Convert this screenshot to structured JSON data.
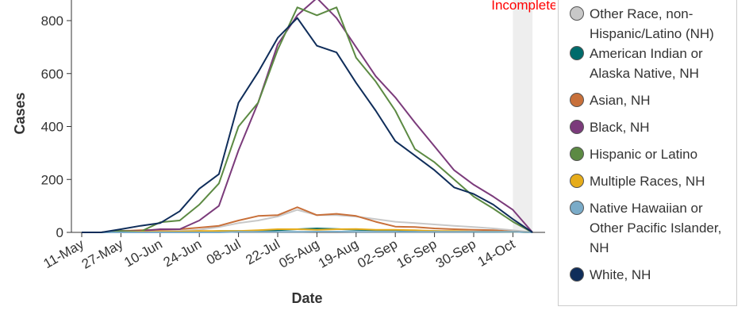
{
  "chart_data": {
    "type": "line",
    "xlabel": "Date",
    "ylabel": "Cases",
    "x_tick_labels": [
      "11-May",
      "27-May",
      "10-Jun",
      "24-Jun",
      "08-Jul",
      "22-Jul",
      "05-Aug",
      "19-Aug",
      "02-Sep",
      "16-Sep",
      "30-Sep",
      "14-Oct"
    ],
    "x_ticks_week_index": [
      0,
      2,
      4,
      6,
      8,
      10,
      12,
      14,
      16,
      18,
      20,
      22
    ],
    "y_ticks": [
      0,
      200,
      400,
      600,
      800
    ],
    "ylim": [
      0,
      900
    ],
    "x_range_weeks": [
      0,
      23.5
    ],
    "grid": false,
    "legend_position": "right",
    "annotation": {
      "label": "Incomplete",
      "from_week": 22,
      "to_week": 23,
      "color": "#ff0000"
    },
    "x_weeks": [
      0,
      1,
      2,
      3,
      4,
      5,
      6,
      7,
      8,
      9,
      10,
      11,
      12,
      13,
      14,
      15,
      16,
      17,
      18,
      19,
      20,
      21,
      22,
      23
    ],
    "series": [
      {
        "name": "Other Race, non-Hispanic/Latino (NH)",
        "color": "#c8c8c8",
        "values": [
          0,
          0,
          2,
          3,
          5,
          6,
          10,
          20,
          35,
          45,
          60,
          85,
          65,
          65,
          60,
          50,
          40,
          35,
          30,
          25,
          20,
          15,
          8,
          0
        ]
      },
      {
        "name": "American Indian or Alaska Native, NH",
        "color": "#006b6b",
        "values": [
          0,
          0,
          0,
          0,
          0,
          2,
          3,
          5,
          5,
          3,
          8,
          12,
          15,
          13,
          10,
          8,
          8,
          5,
          5,
          3,
          2,
          2,
          2,
          0
        ]
      },
      {
        "name": "Asian, NH",
        "color": "#c8703a",
        "values": [
          0,
          0,
          5,
          8,
          10,
          12,
          18,
          25,
          45,
          62,
          65,
          95,
          65,
          70,
          62,
          40,
          22,
          20,
          15,
          12,
          10,
          8,
          3,
          0
        ]
      },
      {
        "name": "Black, NH",
        "color": "#7b3b7b",
        "values": [
          0,
          0,
          5,
          5,
          12,
          12,
          45,
          100,
          310,
          490,
          710,
          820,
          885,
          810,
          700,
          590,
          510,
          415,
          325,
          235,
          180,
          135,
          85,
          0
        ]
      },
      {
        "name": "Hispanic or Latino",
        "color": "#5c8a43",
        "values": [
          0,
          0,
          5,
          3,
          38,
          45,
          105,
          185,
          400,
          490,
          690,
          850,
          820,
          850,
          660,
          570,
          460,
          315,
          265,
          200,
          135,
          90,
          40,
          0
        ]
      },
      {
        "name": "Multiple Races, NH",
        "color": "#e6ac1a",
        "values": [
          0,
          0,
          0,
          2,
          2,
          3,
          5,
          5,
          5,
          8,
          12,
          12,
          10,
          12,
          13,
          10,
          10,
          8,
          5,
          5,
          3,
          3,
          2,
          0
        ]
      },
      {
        "name": "Native Hawaiian or Other Pacific Islander, NH",
        "color": "#7aabc8",
        "values": [
          0,
          0,
          0,
          0,
          0,
          0,
          0,
          0,
          2,
          2,
          2,
          2,
          3,
          3,
          2,
          2,
          2,
          2,
          2,
          2,
          2,
          2,
          2,
          0
        ]
      },
      {
        "name": "White, NH",
        "color": "#0f2d5a",
        "values": [
          0,
          0,
          12,
          25,
          35,
          80,
          165,
          220,
          490,
          605,
          735,
          810,
          705,
          680,
          565,
          460,
          345,
          290,
          235,
          170,
          145,
          105,
          50,
          0
        ]
      }
    ]
  }
}
